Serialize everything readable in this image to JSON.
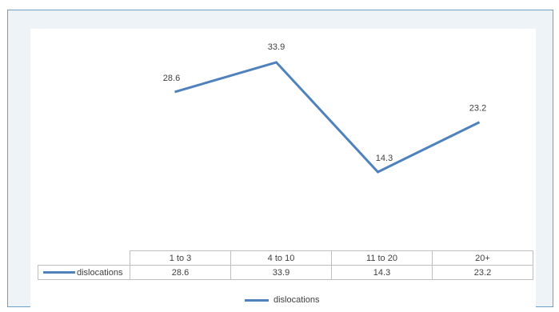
{
  "chart_data": {
    "type": "line",
    "categories": [
      "1 to 3",
      "4 to 10",
      "11 to 20",
      "20+"
    ],
    "series": [
      {
        "name": "dislocations",
        "values": [
          28.6,
          33.9,
          14.3,
          23.2
        ],
        "color": "#4f81bd"
      }
    ],
    "data_labels": [
      "28.6",
      "33.9",
      "14.3",
      "23.2"
    ],
    "data_table": {
      "headers": [
        "1 to 3",
        "4 to 10",
        "11 to 20",
        "20+"
      ],
      "row_label": "dislocations",
      "row_values": [
        "28.6",
        "33.9",
        "14.3",
        "23.2"
      ]
    },
    "legend": {
      "label": "dislocations",
      "position": "bottom"
    },
    "grid": false,
    "title": "",
    "xlabel": "",
    "ylabel": ""
  }
}
